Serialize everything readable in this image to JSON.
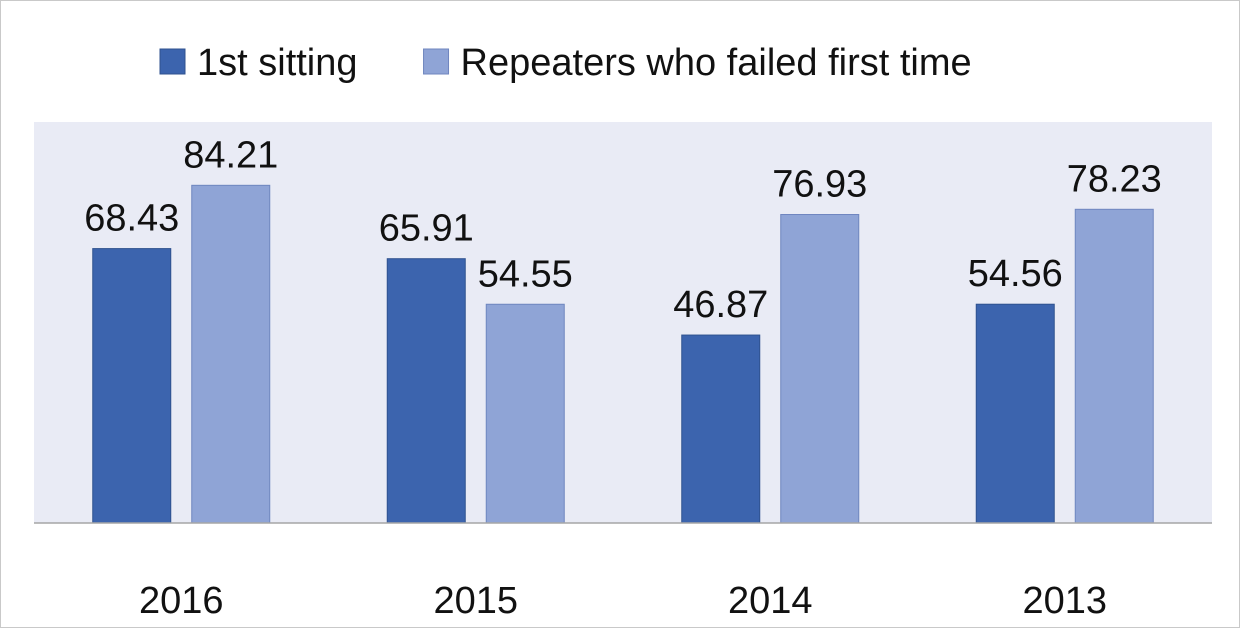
{
  "chart_data": {
    "type": "bar",
    "categories": [
      "2016",
      "2015",
      "2014",
      "2013"
    ],
    "series": [
      {
        "name": "1st sitting",
        "color": "#3c64ae",
        "values": [
          68.43,
          65.91,
          46.87,
          54.56
        ]
      },
      {
        "name": "Repeaters who failed first time",
        "color": "#8fa4d6",
        "values": [
          84.21,
          54.55,
          76.93,
          78.23
        ]
      }
    ],
    "ylim": [
      0,
      100
    ],
    "legend": "top"
  }
}
